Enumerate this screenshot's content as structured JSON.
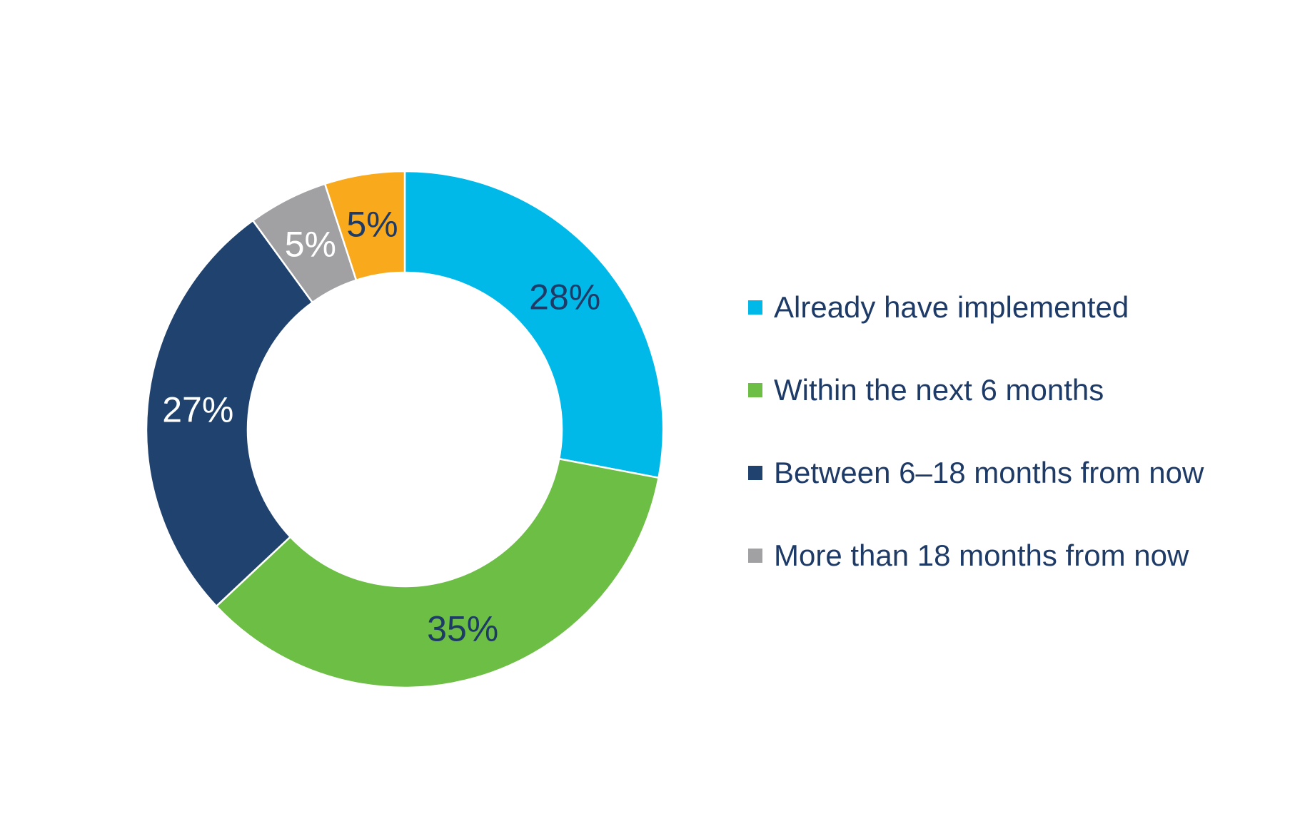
{
  "chart_data": {
    "type": "pie",
    "style": "donut",
    "title": "",
    "legend_position": "right",
    "slices": [
      {
        "label": "Already have implemented",
        "value": 28,
        "display": "28%",
        "color": "#00b9e8",
        "label_color": "#1e3a66"
      },
      {
        "label": "Within the next 6 months",
        "value": 35,
        "display": "35%",
        "color": "#6cbe45",
        "label_color": "#1e3a66"
      },
      {
        "label": "Between 6-18 months from now",
        "value": 27,
        "display": "27%",
        "color": "#20426e",
        "label_color": "#ffffff"
      },
      {
        "label": "More than 18 months from now",
        "value": 5,
        "display": "5%",
        "color": "#a1a1a4",
        "label_color": "#ffffff"
      },
      {
        "label": "",
        "value": 5,
        "display": "5%",
        "color": "#f8a91c",
        "label_color": "#1e3a66"
      }
    ],
    "legend": [
      {
        "label": "Already have implemented",
        "color": "#00b9e8"
      },
      {
        "label": "Within the next 6 months",
        "color": "#6cbe45"
      },
      {
        "label": "Between 6–18 months from now",
        "color": "#20426e"
      },
      {
        "label": "More than 18 months from now",
        "color": "#a1a1a4"
      }
    ]
  }
}
